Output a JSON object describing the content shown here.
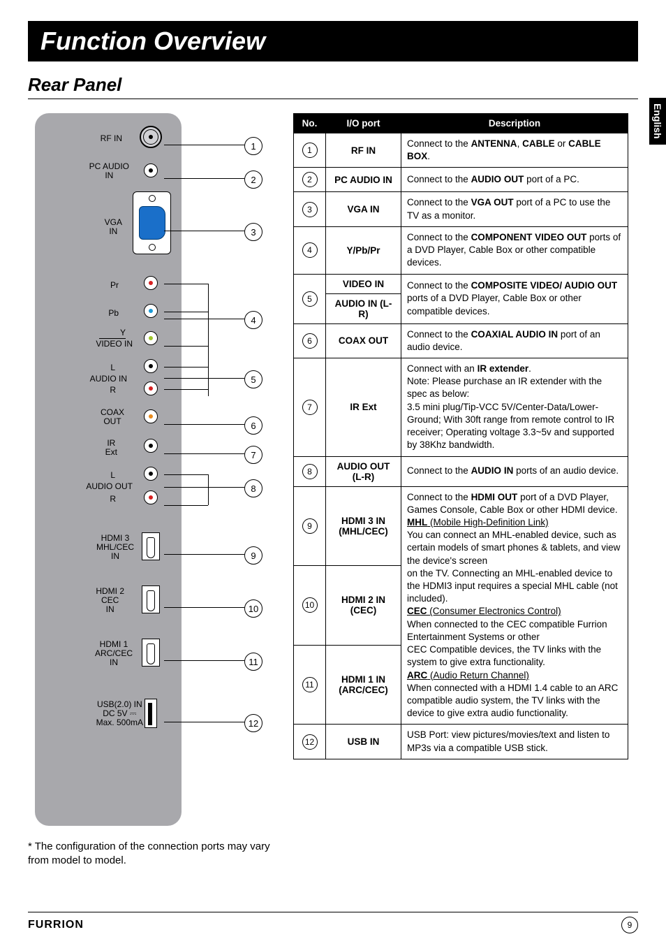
{
  "title": "Function Overview",
  "subtitle": "Rear Panel",
  "lang": "English",
  "note": "* The configuration of the connection ports may vary from model to model.",
  "brand": "FURRION",
  "page": "9",
  "panel_labels": {
    "rf": "RF IN",
    "pcaudio": "PC AUDIO\nIN",
    "vga": "VGA\nIN",
    "pr": "Pr",
    "pb": "Pb",
    "y": "Y",
    "videoin": "VIDEO IN",
    "l1": "L",
    "audioin": "AUDIO IN",
    "r1": "R",
    "coax": "COAX\nOUT",
    "ir": "IR\nExt",
    "l2": "L",
    "audioout": "AUDIO OUT",
    "r2": "R",
    "hdmi3": "HDMI 3\nMHL/CEC\nIN",
    "hdmi2": "HDMI 2\nCEC\nIN",
    "hdmi1": "HDMI 1\nARC/CEC\nIN",
    "usb": "USB(2.0) IN\nDC 5V ⎓\nMax. 500mA"
  },
  "headers": {
    "no": "No.",
    "port": "I/O port",
    "desc": "Description"
  },
  "rows": [
    {
      "n": "1",
      "port": "RF IN",
      "desc": "Connect to the <b>ANTENNA</b>, <b>CABLE</b> or <b>CABLE BOX</b>."
    },
    {
      "n": "2",
      "port": "PC AUDIO IN",
      "desc": "Connect to the <b>AUDIO OUT</b> port of a PC."
    },
    {
      "n": "3",
      "port": "VGA IN",
      "desc": "Connect to the <b>VGA OUT</b> port of a PC to use the TV as a monitor."
    },
    {
      "n": "4",
      "port": "Y/Pb/Pr",
      "desc": "Connect to the <b>COMPONENT VIDEO OUT</b> ports of a DVD Player, Cable Box or other compatible devices."
    },
    {
      "n": "5",
      "port_a": "VIDEO IN",
      "port_b": "AUDIO IN (L-R)",
      "desc": "Connect to the <b>COMPOSITE VIDEO/ AUDIO OUT</b> ports of a DVD Player, Cable Box or other compatible devices."
    },
    {
      "n": "6",
      "port": "COAX OUT",
      "desc": "Connect to the <b>COAXIAL AUDIO IN</b> port of an audio device."
    },
    {
      "n": "7",
      "port": "IR Ext",
      "desc": "Connect with an <b>IR extender</b>.<br>Note: Please purchase an IR extender with the spec as below:<br>3.5 mini plug/Tip-VCC 5V/Center-Data/Lower-Ground; With 30ft range from remote control to IR receiver; Operating voltage 3.3~5v and supported by 38Khz bandwidth."
    },
    {
      "n": "8",
      "port": "AUDIO OUT (L-R)",
      "desc": "Connect to the <b>AUDIO IN</b> ports of an audio device."
    },
    {
      "n": "9",
      "port": "HDMI 3 IN (MHL/CEC)",
      "desc": "Connect to the <b>HDMI OUT</b> port of a DVD Player, Games Console, Cable Box or other HDMI device.<br><span class='u'><b>MHL</b> (Mobile High-Definition Link)</span><br>You can connect an MHL-enabled device, such as certain models of smart phones & tablets, and view the device's screen"
    },
    {
      "n": "10",
      "port": "HDMI 2 IN (CEC)",
      "desc": "on the TV. Connecting an MHL-enabled device to the HDMI3 input requires a special MHL cable (not included).<br><span class='u'><b>CEC</b> (Consumer Electronics Control)</span><br>When connected to the CEC compatible Furrion Entertainment Systems or other"
    },
    {
      "n": "11",
      "port": "HDMI 1 IN (ARC/CEC)",
      "desc": "CEC Compatible devices, the TV links with the system to give extra functionality.<br><span class='u'><b>ARC</b> (Audio Return Channel)</span><br>When connected with a HDMI 1.4 cable to an ARC compatible audio system, the TV links with the device to give extra audio functionality."
    },
    {
      "n": "12",
      "port": "USB IN",
      "desc": "USB Port: view pictures/movies/text and listen to MP3s via a compatible USB stick."
    }
  ]
}
